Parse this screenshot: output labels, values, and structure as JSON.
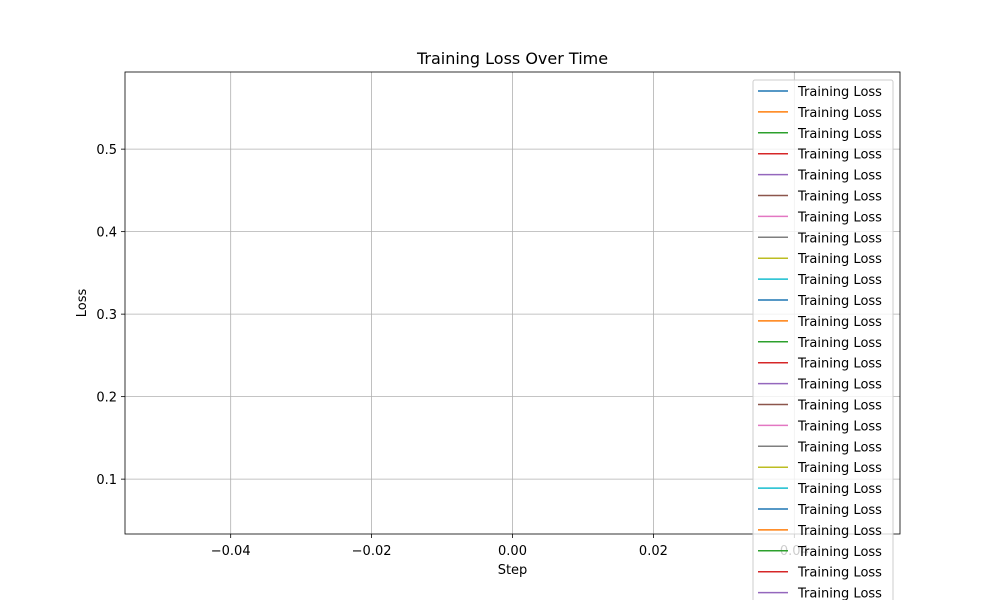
{
  "chart_data": {
    "type": "line",
    "title": "Training Loss Over Time",
    "xlabel": "Step",
    "ylabel": "Loss",
    "xlim": [
      -0.055,
      0.055
    ],
    "ylim": [
      0.0335,
      0.5935
    ],
    "xticks": [
      -0.04,
      -0.02,
      0.0,
      0.02
    ],
    "xtick_labels": [
      "−0.04",
      "−0.02",
      "0.00",
      "0.02"
    ],
    "clipped_xtick_label": "0.04",
    "yticks": [
      0.1,
      0.2,
      0.3,
      0.4,
      0.5
    ],
    "ytick_labels": [
      "0.1",
      "0.2",
      "0.3",
      "0.4",
      "0.5"
    ],
    "grid": true,
    "legend_position": "top-right",
    "series": [
      {
        "name": "Training Loss",
        "color": "#1f77b4",
        "x": [],
        "y": []
      },
      {
        "name": "Training Loss",
        "color": "#ff7f0e",
        "x": [],
        "y": []
      },
      {
        "name": "Training Loss",
        "color": "#2ca02c",
        "x": [],
        "y": []
      },
      {
        "name": "Training Loss",
        "color": "#d62728",
        "x": [],
        "y": []
      },
      {
        "name": "Training Loss",
        "color": "#9467bd",
        "x": [],
        "y": []
      },
      {
        "name": "Training Loss",
        "color": "#8c564b",
        "x": [],
        "y": []
      },
      {
        "name": "Training Loss",
        "color": "#e377c2",
        "x": [],
        "y": []
      },
      {
        "name": "Training Loss",
        "color": "#7f7f7f",
        "x": [],
        "y": []
      },
      {
        "name": "Training Loss",
        "color": "#bcbd22",
        "x": [],
        "y": []
      },
      {
        "name": "Training Loss",
        "color": "#17becf",
        "x": [],
        "y": []
      },
      {
        "name": "Training Loss",
        "color": "#1f77b4",
        "x": [],
        "y": []
      },
      {
        "name": "Training Loss",
        "color": "#ff7f0e",
        "x": [],
        "y": []
      },
      {
        "name": "Training Loss",
        "color": "#2ca02c",
        "x": [],
        "y": []
      },
      {
        "name": "Training Loss",
        "color": "#d62728",
        "x": [],
        "y": []
      },
      {
        "name": "Training Loss",
        "color": "#9467bd",
        "x": [],
        "y": []
      },
      {
        "name": "Training Loss",
        "color": "#8c564b",
        "x": [],
        "y": []
      },
      {
        "name": "Training Loss",
        "color": "#e377c2",
        "x": [],
        "y": []
      },
      {
        "name": "Training Loss",
        "color": "#7f7f7f",
        "x": [],
        "y": []
      },
      {
        "name": "Training Loss",
        "color": "#bcbd22",
        "x": [],
        "y": []
      },
      {
        "name": "Training Loss",
        "color": "#17becf",
        "x": [],
        "y": []
      },
      {
        "name": "Training Loss",
        "color": "#1f77b4",
        "x": [],
        "y": []
      },
      {
        "name": "Training Loss",
        "color": "#ff7f0e",
        "x": [],
        "y": []
      },
      {
        "name": "Training Loss",
        "color": "#2ca02c",
        "x": [],
        "y": []
      },
      {
        "name": "Training Loss",
        "color": "#d62728",
        "x": [],
        "y": []
      },
      {
        "name": "Training Loss",
        "color": "#9467bd",
        "x": [],
        "y": []
      }
    ]
  }
}
